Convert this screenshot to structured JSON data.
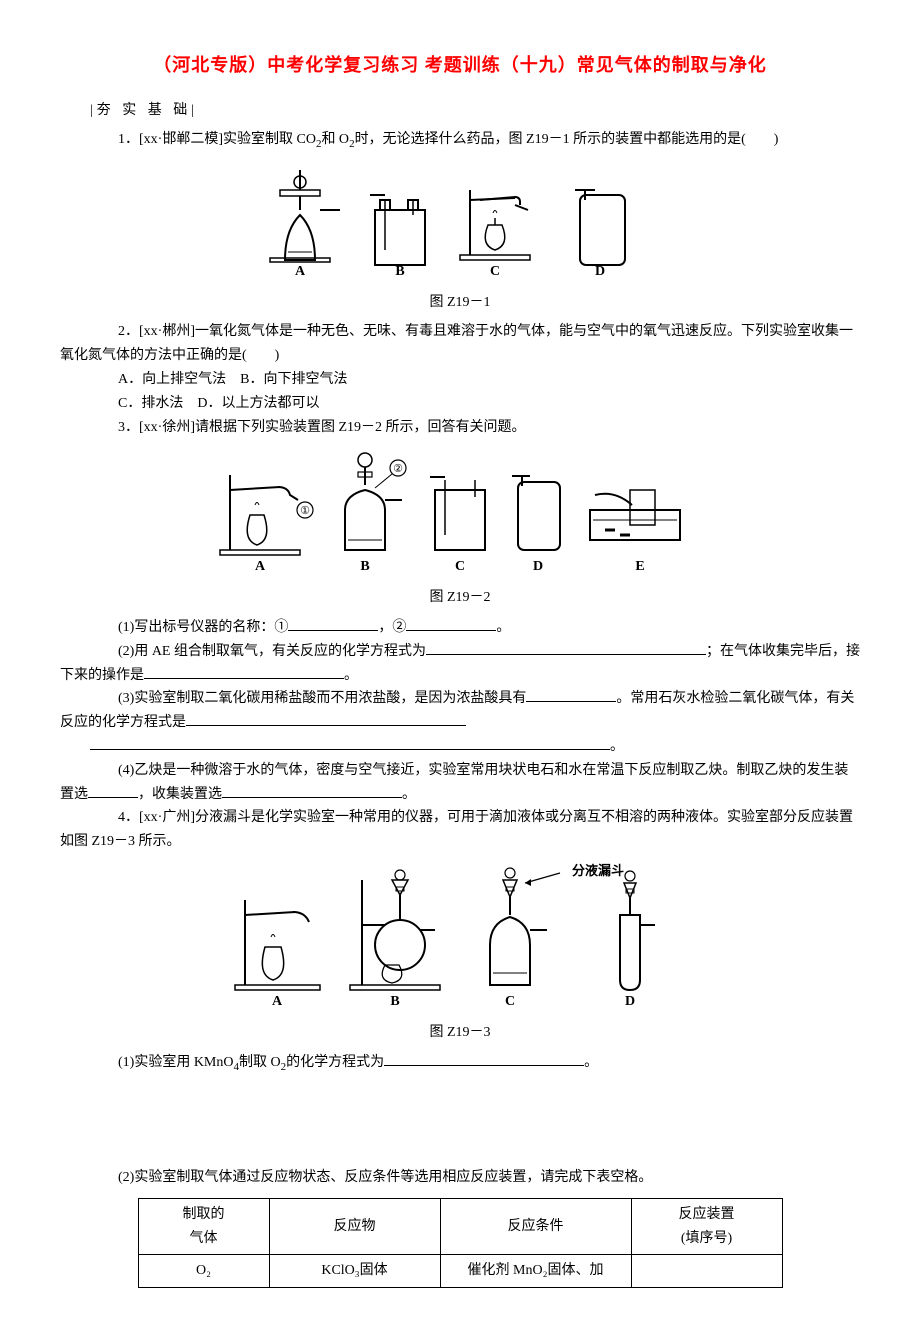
{
  "title": "（河北专版）中考化学复习练习 考题训练（十九）常见气体的制取与净化",
  "section_head": "|夯 实 基 础|",
  "q1": {
    "text_before": "1．[xx·邯郸二模]实验室制取 CO",
    "sub1": "2",
    "text_mid1": "和 O",
    "sub2": "2",
    "text_after": "时，无论选择什么药品，图 Z19－1 所示的装置中都能选用的是(　　)",
    "caption": "图 Z19－1",
    "labels": [
      "A",
      "B",
      "C",
      "D"
    ]
  },
  "q2": {
    "intro": "2．[xx·郴州]一氧化氮气体是一种无色、无味、有毒且难溶于水的气体，能与空气中的氧气迅速反应。下列实验室收集一氧化氮气体的方法中正确的是(　　)",
    "opt_line1": "A．向上排空气法　B．向下排空气法",
    "opt_line2": "C．排水法　D．以上方法都可以"
  },
  "q3": {
    "intro": "3．[xx·徐州]请根据下列实验装置图 Z19－2 所示，回答有关问题。",
    "caption": "图 Z19－2",
    "labels": [
      "A",
      "B",
      "C",
      "D",
      "E"
    ],
    "p1_a": "(1)写出标号仪器的名称：①",
    "p1_b": "，②",
    "p1_c": "。",
    "p2_a": "(2)用 AE 组合制取氧气，有关反应的化学方程式为",
    "p2_b": "；在气体收集完毕后，接下来的操作是",
    "p2_c": "。",
    "p3_a": "(3)实验室制取二氧化碳用稀盐酸而不用浓盐酸，是因为浓盐酸具有",
    "p3_b": "。常用石灰水检验二氧化碳气体，有关反应的化学方程式是",
    "p3_c": "。",
    "p4_a": "(4)乙炔是一种微溶于水的气体，密度与空气接近，实验室常用块状电石和水在常温下反应制取乙炔。制取乙炔的发生装置选",
    "p4_b": "，收集装置选",
    "p4_c": "。"
  },
  "q4": {
    "intro": "4．[xx·广州]分液漏斗是化学实验室一种常用的仪器，可用于滴加液体或分离互不相溶的两种液体。实验室部分反应装置如图 Z19－3 所示。",
    "caption": "图 Z19－3",
    "labels": [
      "A",
      "B",
      "C",
      "D"
    ],
    "funnel_label": "分液漏斗",
    "p1_a": "(1)实验室用 KMnO",
    "p1_sub": "4",
    "p1_b": "制取 O",
    "p1_sub2": "2",
    "p1_c": "的化学方程式为",
    "p1_d": "。",
    "p2": "(2)实验室制取气体通过反应物状态、反应条件等选用相应反应装置，请完成下表空格。"
  },
  "table": {
    "headers": [
      "制取的\n气体",
      "反应物",
      "反应条件",
      "反应装置\n(填序号)"
    ],
    "row1": [
      "O₂",
      "KClO₃固体",
      "催化剂 MnO₂固体、加",
      ""
    ]
  },
  "colors": {
    "title": "#ff0000",
    "text": "#000000",
    "bg": "#ffffff"
  }
}
